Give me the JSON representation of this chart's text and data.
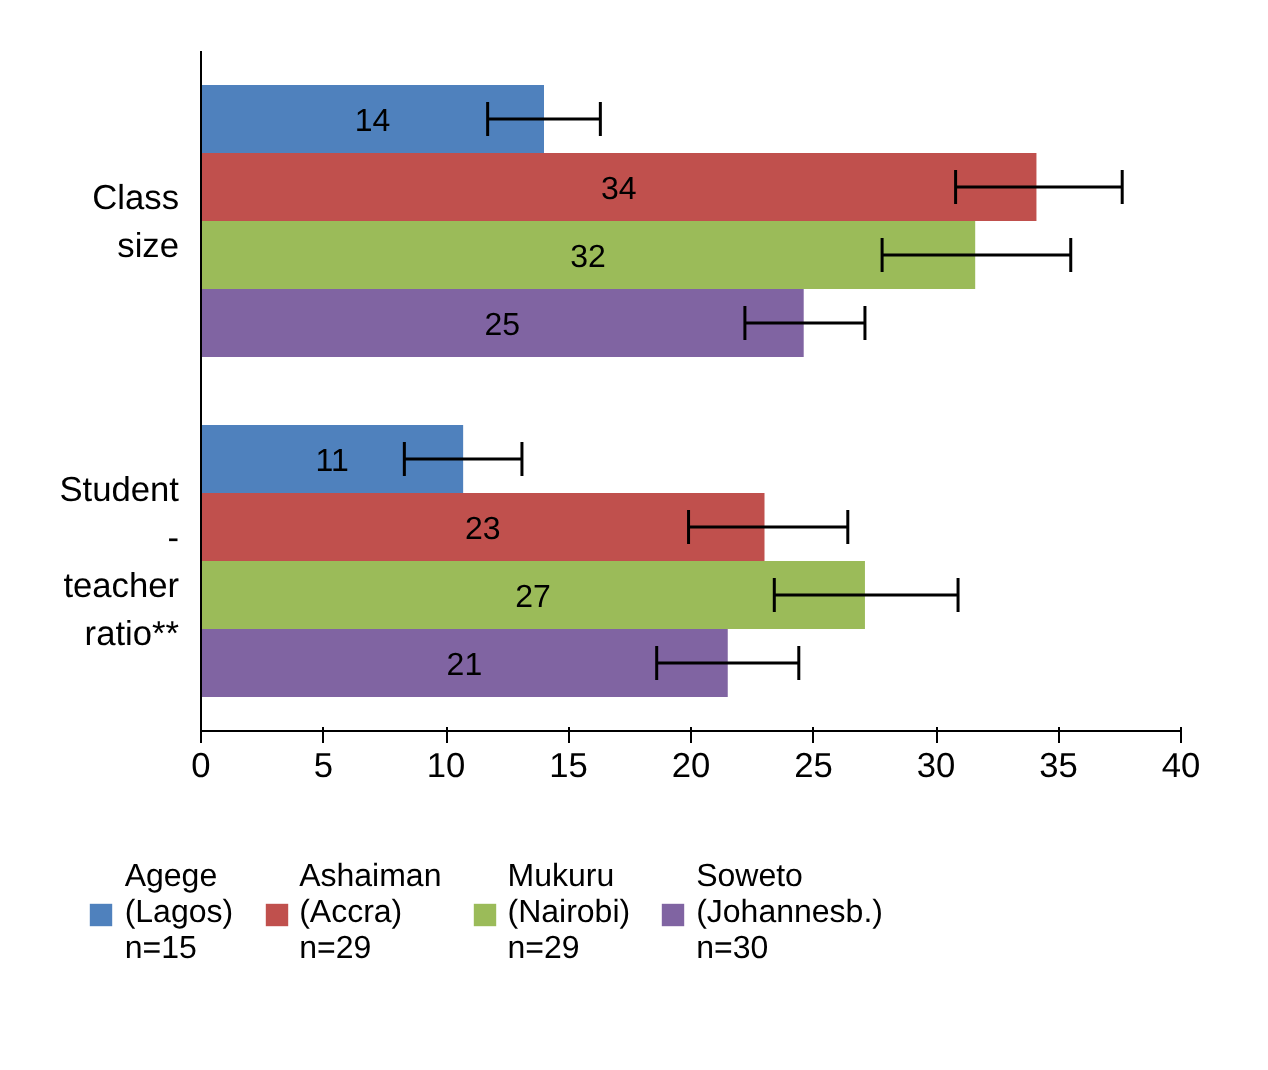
{
  "chart_data": {
    "type": "bar",
    "orientation": "horizontal",
    "categories": [
      "Class\nsize",
      "Student\n-\nteacher\nratio**"
    ],
    "series": [
      {
        "name": "Agege\n(Lagos)\nn=15",
        "color": "#4f81bd",
        "values": [
          14.0,
          10.7
        ],
        "value_labels": [
          "14",
          "11"
        ],
        "errors": [
          [
            11.7,
            16.3
          ],
          [
            8.3,
            13.1
          ]
        ]
      },
      {
        "name": "Ashaiman\n(Accra)\nn=29",
        "color": "#c0504d",
        "values": [
          34.1,
          23.0
        ],
        "value_labels": [
          "34",
          "23"
        ],
        "errors": [
          [
            30.8,
            37.6
          ],
          [
            19.9,
            26.4
          ]
        ]
      },
      {
        "name": "Mukuru\n(Nairobi)\nn=29",
        "color": "#9bbb59",
        "values": [
          31.6,
          27.1
        ],
        "value_labels": [
          "32",
          "27"
        ],
        "errors": [
          [
            27.8,
            35.5
          ],
          [
            23.4,
            30.9
          ]
        ]
      },
      {
        "name": "Soweto\n(Johannesb.)\nn=30",
        "color": "#8064a2",
        "values": [
          24.6,
          21.5
        ],
        "value_labels": [
          "25",
          "21"
        ],
        "errors": [
          [
            22.2,
            27.1
          ],
          [
            18.6,
            24.4
          ]
        ]
      }
    ],
    "xlim": [
      0,
      40
    ],
    "xticks": [
      0,
      5,
      10,
      15,
      20,
      25,
      30,
      35,
      40
    ],
    "legend": "bottom"
  }
}
